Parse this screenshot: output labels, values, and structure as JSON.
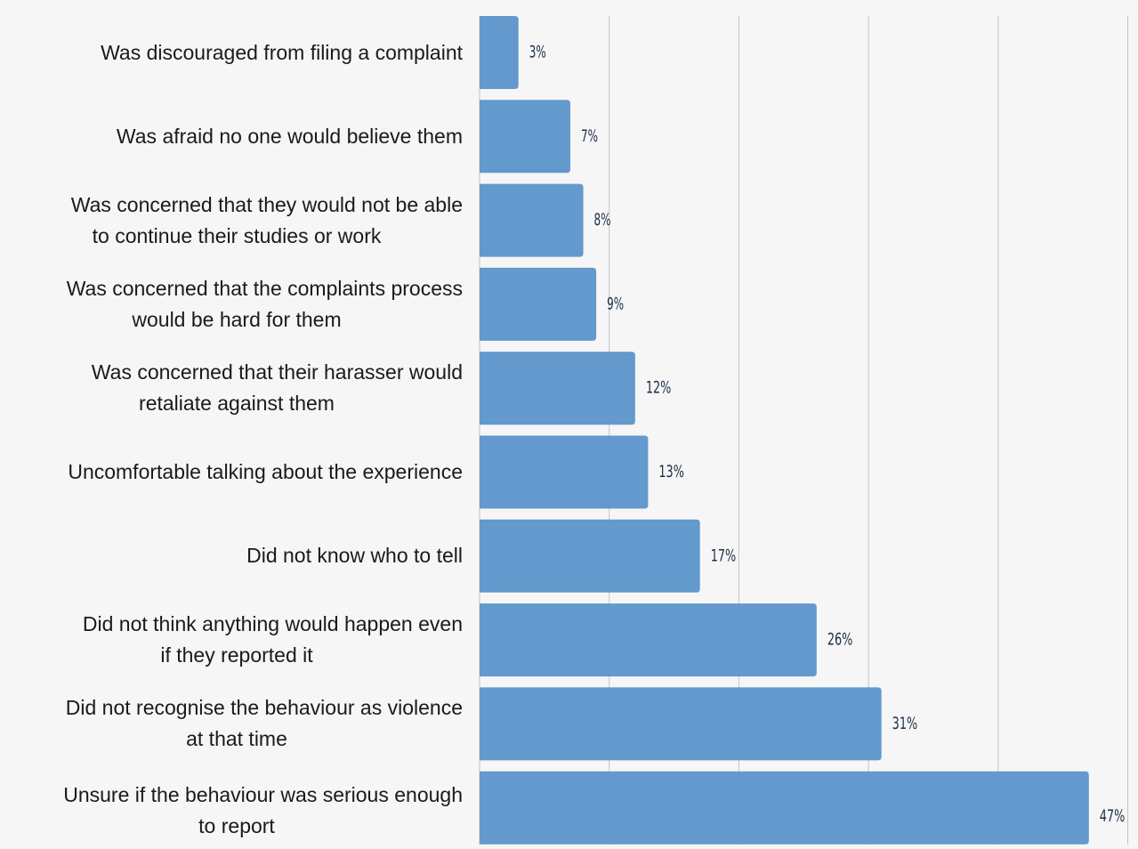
{
  "chart_data": {
    "type": "bar",
    "orientation": "horizontal",
    "title": "",
    "xlabel": "",
    "ylabel": "",
    "xlim": [
      0,
      50
    ],
    "grid": true,
    "gridlines_at": [
      0,
      10,
      20,
      30,
      40,
      50
    ],
    "bar_color": "#6399cc",
    "label_color": "#1a2e45",
    "categories": [
      "Was discouraged from filing a complaint",
      "Was afraid no one would believe them",
      "Was concerned that they would not be able to continue their studies or work",
      "Was concerned that the complaints process would be hard for them",
      "Was concerned that their harasser would retaliate against them",
      "Uncomfortable talking about the experience",
      "Did not know who to tell",
      "Did not think anything would happen even if they reported it",
      "Did not recognise the behaviour as violence at that time",
      "Unsure if the behaviour was serious enough to report"
    ],
    "category_lines": [
      [
        "Was discouraged from filing a complaint"
      ],
      [
        "Was afraid no one would believe them"
      ],
      [
        "Was concerned that they would not be able",
        "to continue their studies or work"
      ],
      [
        "Was concerned that the complaints process",
        "would be hard for them"
      ],
      [
        "Was concerned that their harasser would",
        "retaliate against them"
      ],
      [
        "Uncomfortable talking about the experience"
      ],
      [
        "Did not know who to tell"
      ],
      [
        "Did not think anything would happen even",
        "if they reported it"
      ],
      [
        "Did not recognise the behaviour as violence",
        "at that time"
      ],
      [
        "Unsure if the behaviour was serious enough",
        "to report"
      ]
    ],
    "values": [
      3,
      7,
      8,
      9,
      12,
      13,
      17,
      26,
      31,
      47
    ],
    "data_labels": [
      "3%",
      "7%",
      "8%",
      "9%",
      "12%",
      "13%",
      "17%",
      "26%",
      "31%",
      "47%"
    ]
  }
}
